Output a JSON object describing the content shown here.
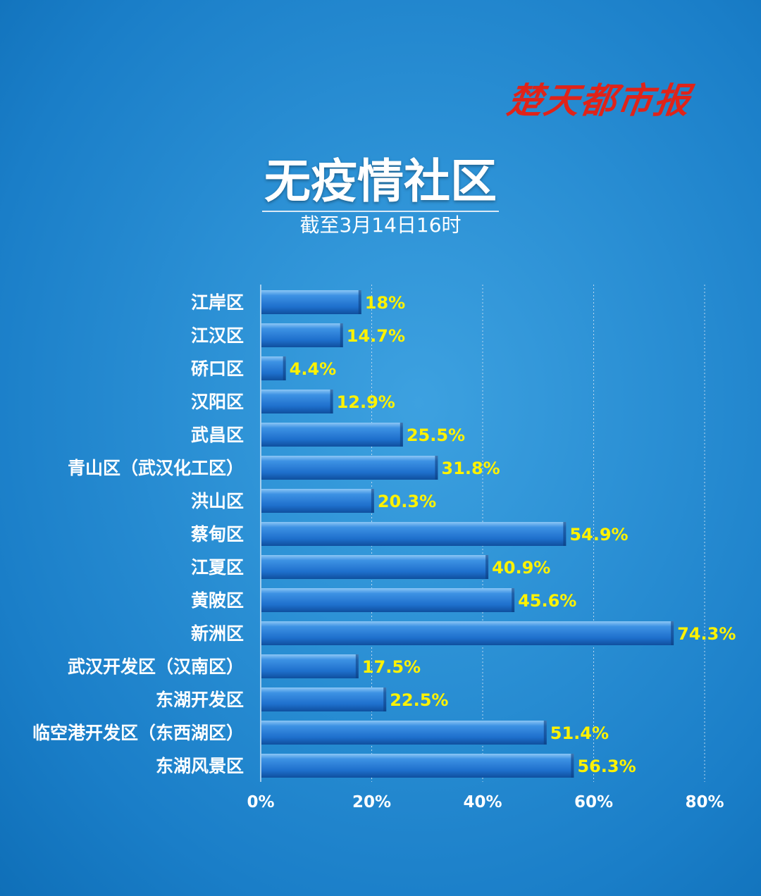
{
  "brand": "楚天都市报",
  "colors": {
    "bar": "#1e6fcc",
    "bar_highlight": "#8cc6f5",
    "value_label": "#fff200",
    "brand": "#e02319"
  },
  "chart_data": {
    "type": "bar",
    "orientation": "horizontal",
    "title": "无疫情社区",
    "subtitle": "截至3月14日16时",
    "categories": [
      "江岸区",
      "江汉区",
      "硚口区",
      "汉阳区",
      "武昌区",
      "青山区（武汉化工区）",
      "洪山区",
      "蔡甸区",
      "江夏区",
      "黄陂区",
      "新洲区",
      "武汉开发区（汉南区）",
      "东湖开发区",
      "临空港开发区（东西湖区）",
      "东湖风景区"
    ],
    "values": [
      18,
      14.7,
      4.4,
      12.9,
      25.5,
      31.8,
      20.3,
      54.9,
      40.9,
      45.6,
      74.3,
      17.5,
      22.5,
      51.4,
      56.3
    ],
    "value_labels": [
      "18%",
      "14.7%",
      "4.4%",
      "12.9%",
      "25.5%",
      "31.8%",
      "20.3%",
      "54.9%",
      "40.9%",
      "45.6%",
      "74.3%",
      "17.5%",
      "22.5%",
      "51.4%",
      "56.3%"
    ],
    "xlim": [
      0,
      80
    ],
    "xticks": [
      "0%",
      "20%",
      "40%",
      "60%",
      "80%"
    ],
    "grid": true
  }
}
